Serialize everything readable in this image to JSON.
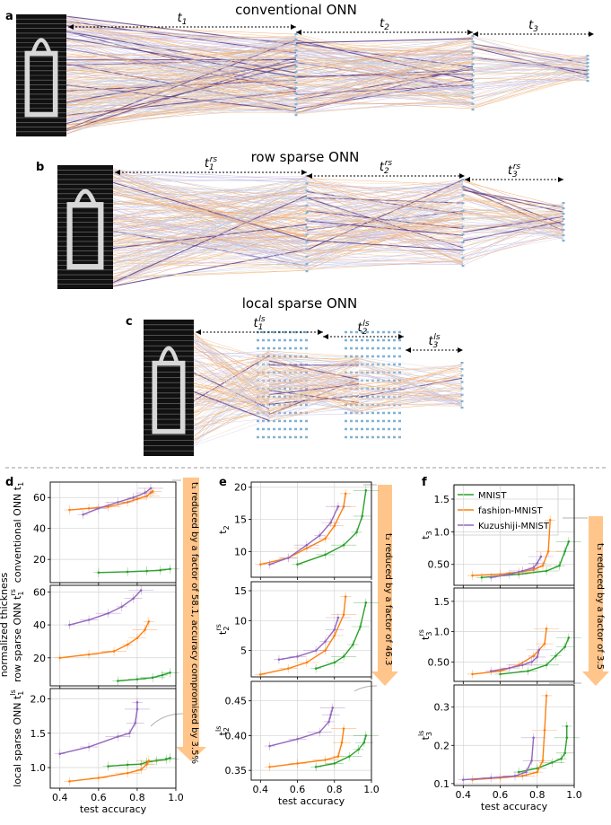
{
  "panels": {
    "a": {
      "letter": "a",
      "title": "conventional ONN",
      "labels": [
        "t1",
        "t2",
        "t3"
      ]
    },
    "b": {
      "letter": "b",
      "title": "row sparse ONN",
      "labels": [
        "t1rs",
        "t2rs",
        "t3rs"
      ]
    },
    "c": {
      "letter": "c",
      "title": "local sparse ONN",
      "labels": [
        "t1ls",
        "t2ls",
        "t3ls"
      ]
    }
  },
  "lower": {
    "letters": [
      "d",
      "e",
      "f"
    ],
    "shared_ylabel": "normalized thickness",
    "xlabel": "test accuracy",
    "xticks": [
      "0.4",
      "0.6",
      "0.8",
      "1.0"
    ],
    "annotations": [
      "t₁ reduced by a factor of 58.1, accuracy compromised by 3.5%",
      "t₂ reduced by a factor of 46.3",
      "t₃ reduced by a factor of 3.5"
    ]
  },
  "legend": [
    "MNIST",
    "fashion-MNIST",
    "Kuzushiji-MNIST"
  ],
  "colors": {
    "MNIST": "#2ca02c",
    "fashion-MNIST": "#ff7f0e",
    "Kuzushiji-MNIST": "#9467bd",
    "arrow": "#ffc58a",
    "neuron": "#7fb2d5"
  },
  "chart_data": [
    {
      "id": "d1",
      "type": "line",
      "ylabel": "conventional ONN t1",
      "xlim": [
        0.35,
        1.0
      ],
      "ylim": [
        5,
        70
      ],
      "yticks": [
        20,
        40,
        60
      ],
      "series": [
        {
          "name": "MNIST",
          "x": [
            0.6,
            0.75,
            0.85,
            0.92,
            0.97
          ],
          "y": [
            11.5,
            12.0,
            12.5,
            13.0,
            13.8
          ]
        },
        {
          "name": "fashion-MNIST",
          "x": [
            0.45,
            0.55,
            0.65,
            0.75,
            0.8,
            0.85,
            0.87,
            0.88
          ],
          "y": [
            52,
            53,
            54,
            57,
            59,
            61,
            63,
            64
          ]
        },
        {
          "name": "Kuzushiji-MNIST",
          "x": [
            0.52,
            0.6,
            0.7,
            0.78,
            0.84,
            0.87
          ],
          "y": [
            49,
            53,
            57,
            60,
            63,
            66
          ]
        }
      ]
    },
    {
      "id": "d2",
      "type": "line",
      "ylabel": "row sparse ONN t1rs",
      "xlim": [
        0.35,
        1.0
      ],
      "ylim": [
        3,
        64
      ],
      "yticks": [
        20,
        40,
        60
      ],
      "series": [
        {
          "name": "MNIST",
          "x": [
            0.7,
            0.8,
            0.88,
            0.93,
            0.97
          ],
          "y": [
            6,
            7,
            8,
            9.5,
            11
          ]
        },
        {
          "name": "fashion-MNIST",
          "x": [
            0.4,
            0.55,
            0.68,
            0.75,
            0.8,
            0.84,
            0.86
          ],
          "y": [
            20,
            22,
            24,
            28,
            32,
            37,
            42
          ]
        },
        {
          "name": "Kuzushiji-MNIST",
          "x": [
            0.45,
            0.55,
            0.65,
            0.72,
            0.78,
            0.82
          ],
          "y": [
            40,
            43,
            47,
            51,
            56,
            61
          ]
        }
      ]
    },
    {
      "id": "d3",
      "type": "line",
      "ylabel": "local sparse ONN t1ls",
      "xlim": [
        0.35,
        1.0
      ],
      "ylim": [
        0.7,
        2.15
      ],
      "yticks": [
        1.0,
        1.5,
        2.0
      ],
      "series": [
        {
          "name": "MNIST",
          "x": [
            0.65,
            0.75,
            0.82,
            0.85,
            0.9,
            0.95,
            0.97
          ],
          "y": [
            1.02,
            1.04,
            1.05,
            1.08,
            1.1,
            1.12,
            1.14
          ]
        },
        {
          "name": "fashion-MNIST",
          "x": [
            0.45,
            0.6,
            0.75,
            0.82,
            0.85,
            0.86
          ],
          "y": [
            0.8,
            0.85,
            0.92,
            0.97,
            1.05,
            1.1
          ]
        },
        {
          "name": "Kuzushiji-MNIST",
          "x": [
            0.4,
            0.55,
            0.7,
            0.76,
            0.79,
            0.8,
            0.8
          ],
          "y": [
            1.2,
            1.3,
            1.45,
            1.5,
            1.65,
            1.85,
            1.95
          ]
        }
      ]
    },
    {
      "id": "e1",
      "type": "line",
      "ylabel": "t2",
      "xlim": [
        0.35,
        1.0
      ],
      "ylim": [
        6.0,
        20.8
      ],
      "yticks": [
        10,
        15,
        20
      ],
      "series": [
        {
          "name": "MNIST",
          "x": [
            0.6,
            0.75,
            0.85,
            0.92,
            0.95,
            0.97
          ],
          "y": [
            8.0,
            9.5,
            11.0,
            13.0,
            15.5,
            19.5
          ]
        },
        {
          "name": "fashion-MNIST",
          "x": [
            0.4,
            0.55,
            0.65,
            0.75,
            0.8,
            0.85,
            0.86
          ],
          "y": [
            8.0,
            9.0,
            10.5,
            12.0,
            14.0,
            17.0,
            19.0
          ]
        },
        {
          "name": "Kuzushiji-MNIST",
          "x": [
            0.45,
            0.55,
            0.65,
            0.72,
            0.78,
            0.82
          ],
          "y": [
            8.0,
            9.0,
            11.0,
            12.5,
            14.5,
            17.0
          ]
        }
      ]
    },
    {
      "id": "e2",
      "type": "line",
      "ylabel": "t2rs",
      "xlim": [
        0.35,
        1.0
      ],
      "ylim": [
        0.6,
        16.5
      ],
      "yticks": [
        5,
        10,
        15
      ],
      "series": [
        {
          "name": "MNIST",
          "x": [
            0.7,
            0.8,
            0.85,
            0.9,
            0.94,
            0.97
          ],
          "y": [
            2.0,
            3.0,
            4.0,
            6.0,
            9.0,
            13.0
          ]
        },
        {
          "name": "fashion-MNIST",
          "x": [
            0.4,
            0.55,
            0.65,
            0.75,
            0.8,
            0.85,
            0.86
          ],
          "y": [
            1.0,
            2.0,
            3.0,
            5.0,
            7.5,
            11.0,
            14.0
          ]
        },
        {
          "name": "Kuzushiji-MNIST",
          "x": [
            0.5,
            0.6,
            0.7,
            0.75,
            0.8,
            0.82
          ],
          "y": [
            3.5,
            4.0,
            5.0,
            6.5,
            8.5,
            10.5
          ]
        }
      ]
    },
    {
      "id": "e3",
      "type": "line",
      "ylabel": "t2ls",
      "xlim": [
        0.35,
        1.0
      ],
      "ylim": [
        0.336,
        0.478
      ],
      "yticks": [
        0.35,
        0.4,
        0.45
      ],
      "series": [
        {
          "name": "MNIST",
          "x": [
            0.7,
            0.8,
            0.88,
            0.93,
            0.96,
            0.97
          ],
          "y": [
            0.355,
            0.36,
            0.37,
            0.38,
            0.39,
            0.4
          ]
        },
        {
          "name": "fashion-MNIST",
          "x": [
            0.45,
            0.6,
            0.75,
            0.82,
            0.84,
            0.85
          ],
          "y": [
            0.355,
            0.36,
            0.365,
            0.37,
            0.39,
            0.41
          ]
        },
        {
          "name": "Kuzushiji-MNIST",
          "x": [
            0.45,
            0.6,
            0.72,
            0.77,
            0.78,
            0.79
          ],
          "y": [
            0.385,
            0.395,
            0.405,
            0.42,
            0.43,
            0.44
          ]
        }
      ]
    },
    {
      "id": "f1",
      "type": "line",
      "ylabel": "t3",
      "xlim": [
        0.35,
        1.0
      ],
      "ylim": [
        0.18,
        1.72
      ],
      "yticks": [
        0.5,
        1.0,
        1.5
      ],
      "series": [
        {
          "name": "MNIST",
          "x": [
            0.5,
            0.7,
            0.85,
            0.92,
            0.95,
            0.97
          ],
          "y": [
            0.3,
            0.35,
            0.4,
            0.48,
            0.7,
            0.85
          ]
        },
        {
          "name": "fashion-MNIST",
          "x": [
            0.45,
            0.6,
            0.7,
            0.78,
            0.83,
            0.86,
            0.87
          ],
          "y": [
            0.33,
            0.35,
            0.38,
            0.42,
            0.48,
            0.7,
            1.18
          ]
        },
        {
          "name": "Kuzushiji-MNIST",
          "x": [
            0.55,
            0.65,
            0.72,
            0.78,
            0.8,
            0.82
          ],
          "y": [
            0.3,
            0.35,
            0.4,
            0.45,
            0.52,
            0.62
          ]
        }
      ]
    },
    {
      "id": "f2",
      "type": "line",
      "ylabel": "t3rs",
      "xlim": [
        0.35,
        1.0
      ],
      "ylim": [
        0.18,
        1.72
      ],
      "yticks": [
        0.5,
        1.0,
        1.5
      ],
      "series": [
        {
          "name": "MNIST",
          "x": [
            0.6,
            0.75,
            0.85,
            0.9,
            0.95,
            0.97
          ],
          "y": [
            0.3,
            0.35,
            0.45,
            0.6,
            0.75,
            0.9
          ]
        },
        {
          "name": "fashion-MNIST",
          "x": [
            0.45,
            0.6,
            0.7,
            0.78,
            0.84,
            0.85
          ],
          "y": [
            0.3,
            0.35,
            0.45,
            0.6,
            0.8,
            1.05
          ]
        },
        {
          "name": "Kuzushiji-MNIST",
          "x": [
            0.55,
            0.65,
            0.72,
            0.77,
            0.8,
            0.81
          ],
          "y": [
            0.35,
            0.4,
            0.45,
            0.5,
            0.58,
            0.7
          ]
        }
      ]
    },
    {
      "id": "f3",
      "type": "line",
      "ylabel": "t3ls",
      "xlim": [
        0.35,
        1.0
      ],
      "ylim": [
        0.095,
        0.358
      ],
      "yticks": [
        0.1,
        0.2,
        0.3
      ],
      "series": [
        {
          "name": "MNIST",
          "x": [
            0.7,
            0.8,
            0.88,
            0.93,
            0.95,
            0.96,
            0.96
          ],
          "y": [
            0.13,
            0.14,
            0.155,
            0.165,
            0.18,
            0.22,
            0.25
          ]
        },
        {
          "name": "fashion-MNIST",
          "x": [
            0.45,
            0.6,
            0.72,
            0.8,
            0.83,
            0.84,
            0.85
          ],
          "y": [
            0.11,
            0.115,
            0.12,
            0.13,
            0.16,
            0.24,
            0.33
          ]
        },
        {
          "name": "Kuzushiji-MNIST",
          "x": [
            0.4,
            0.55,
            0.68,
            0.74,
            0.77,
            0.78
          ],
          "y": [
            0.11,
            0.115,
            0.12,
            0.13,
            0.16,
            0.22
          ]
        }
      ]
    }
  ]
}
